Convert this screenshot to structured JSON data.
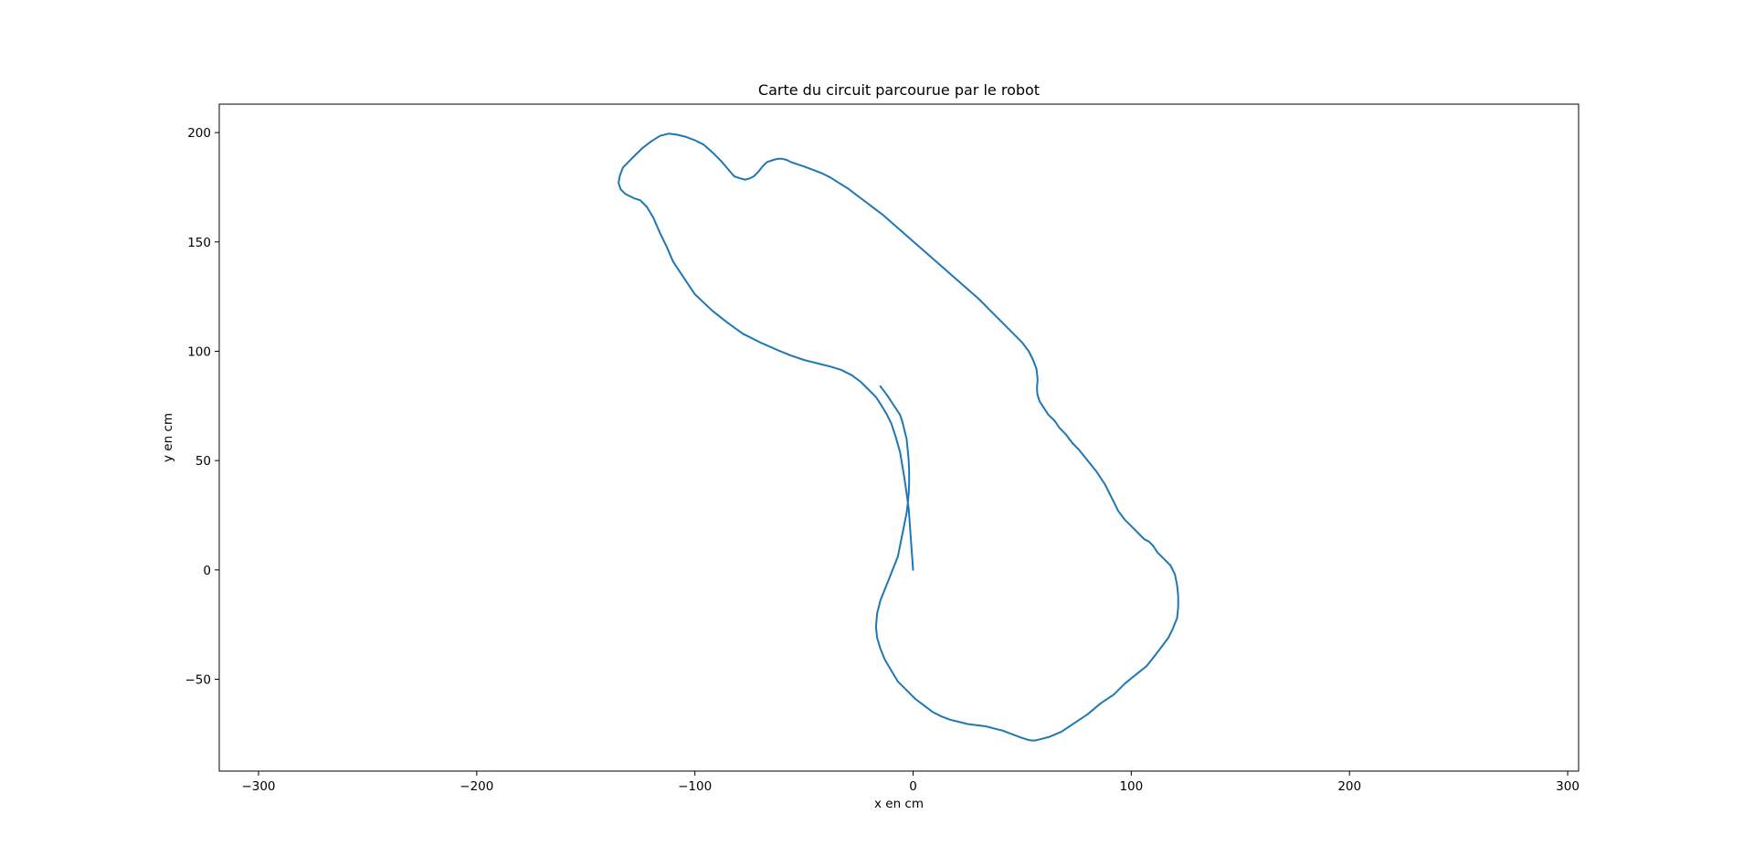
{
  "chart_data": {
    "type": "line",
    "title": "Carte du circuit parcourue par le robot",
    "xlabel": "x en cm",
    "ylabel": "y en cm",
    "xlim": [
      -318,
      305
    ],
    "ylim": [
      -92,
      213
    ],
    "xticks": [
      -300,
      -200,
      -100,
      0,
      100,
      200,
      300
    ],
    "yticks": [
      -50,
      0,
      50,
      100,
      150,
      200
    ],
    "grid": false,
    "legend": "none",
    "series": [
      {
        "color": "#1f77b4",
        "x": [
          0,
          -0.5,
          -1,
          -1.5,
          -2,
          -3,
          -4,
          -5,
          -6,
          -8,
          -10,
          -12,
          -15,
          -17,
          -20,
          -24,
          -28,
          -33,
          -38,
          -44,
          -50,
          -56,
          -62,
          -70,
          -78,
          -85,
          -92,
          -100,
          -106,
          -110,
          -113,
          -116,
          -119,
          -122,
          -125,
          -128,
          -130,
          -132,
          -134,
          -135,
          -134.5,
          -133,
          -130,
          -127,
          -124,
          -120,
          -116,
          -112,
          -108,
          -104,
          -100,
          -96,
          -92,
          -88,
          -85,
          -82,
          -79,
          -77,
          -75,
          -73,
          -71,
          -69,
          -67,
          -64,
          -62,
          -60,
          -58,
          -56,
          -53,
          -50,
          -46,
          -42,
          -38,
          -34,
          -30,
          -26,
          -22,
          -18,
          -14,
          -10,
          -6,
          -2,
          2,
          6,
          10,
          14,
          18,
          22,
          26,
          30,
          34,
          38,
          42,
          46,
          50,
          53,
          55,
          56.5,
          57,
          57,
          56.8,
          56.8,
          57,
          58,
          60,
          62,
          65,
          67,
          70,
          73,
          76,
          80,
          84,
          88,
          91,
          94,
          97,
          100,
          102,
          104,
          106,
          108,
          110,
          112,
          115,
          118,
          120,
          121,
          121.5,
          121.5,
          121,
          119,
          117,
          114,
          111,
          107,
          102,
          97,
          92,
          86,
          80,
          74,
          68,
          62,
          58,
          56,
          54,
          52,
          49,
          45,
          41,
          37,
          33,
          29,
          25,
          21,
          17,
          13,
          9,
          5,
          1,
          -3,
          -7,
          -10,
          -13,
          -15,
          -16.5,
          -17,
          -16.5,
          -15,
          -13,
          -11,
          -9,
          -7,
          -6,
          -5,
          -4,
          -3,
          -2.5,
          -2,
          -1.8,
          -1.8,
          -2,
          -2.5,
          -3,
          -4,
          -5,
          -6,
          -8,
          -10,
          -12,
          -15
        ],
        "y": [
          0,
          7,
          14,
          21,
          28,
          35,
          42,
          48,
          54,
          61,
          67,
          71,
          76,
          79,
          82,
          86,
          89,
          91.5,
          93,
          94.5,
          96,
          98,
          100.5,
          104,
          108,
          113,
          118.5,
          126,
          135,
          141,
          148,
          154,
          161,
          166,
          169,
          170,
          171,
          172,
          174,
          177,
          180,
          184,
          187,
          190,
          193,
          196,
          198.5,
          199.5,
          199,
          198,
          196.5,
          194.5,
          191,
          187,
          183.5,
          180,
          179,
          178.5,
          179,
          180,
          182,
          184.5,
          186.5,
          187.5,
          188,
          188,
          187.5,
          186.5,
          185.5,
          184.5,
          183,
          181.5,
          179.5,
          177,
          174.5,
          171.5,
          168.5,
          165.5,
          162.5,
          159,
          155.5,
          152,
          148.5,
          145,
          141.5,
          138,
          134.5,
          131,
          127.5,
          124,
          120,
          116,
          112,
          108,
          104,
          100,
          96,
          92,
          88,
          86,
          84,
          82,
          80,
          77,
          74,
          71,
          68,
          65,
          62,
          58,
          55,
          50,
          45,
          39,
          33,
          27,
          23,
          20,
          18,
          16,
          14,
          13,
          11,
          8,
          5,
          2,
          -2,
          -7,
          -12,
          -17,
          -22,
          -27,
          -31,
          -35,
          -39,
          -44,
          -48,
          -52,
          -57,
          -61,
          -66,
          -70,
          -74,
          -76.5,
          -77.5,
          -78,
          -78,
          -77.5,
          -76.5,
          -75,
          -73.5,
          -72.5,
          -71.5,
          -71,
          -70.5,
          -69.5,
          -68.5,
          -67,
          -65,
          -62,
          -59,
          -55,
          -51,
          -46,
          -41,
          -36,
          -31,
          -26,
          -20,
          -14,
          -9,
          -4,
          1,
          6,
          11,
          16,
          21,
          26,
          30,
          35,
          40,
          45,
          50,
          55,
          60,
          64,
          68,
          71,
          74,
          77,
          80,
          84
        ]
      }
    ]
  }
}
